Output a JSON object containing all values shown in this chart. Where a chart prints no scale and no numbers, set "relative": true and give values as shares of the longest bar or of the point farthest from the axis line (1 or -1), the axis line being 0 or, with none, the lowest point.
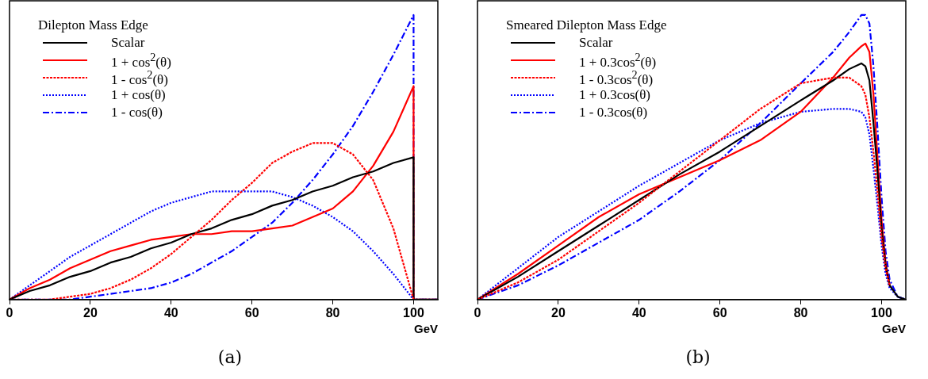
{
  "chart_data": [
    {
      "type": "line",
      "relative": true,
      "legend_title": "Dilepton Mass Edge",
      "legend": "top left",
      "xlabel": "GeV",
      "xlim": [
        0,
        106
      ],
      "xticks": [
        0,
        20,
        40,
        60,
        80,
        100
      ],
      "annotations": [
        "(a)"
      ],
      "grid": false,
      "marker": "none",
      "x": [
        0,
        5,
        10,
        15,
        20,
        25,
        30,
        35,
        40,
        45,
        50,
        55,
        60,
        65,
        70,
        75,
        80,
        85,
        90,
        95,
        100,
        100,
        106
      ],
      "series": [
        {
          "name": "Scalar",
          "color": "#000000",
          "line_style": "solid",
          "values": [
            0,
            0.03,
            0.05,
            0.08,
            0.1,
            0.13,
            0.15,
            0.18,
            0.2,
            0.23,
            0.25,
            0.28,
            0.3,
            0.33,
            0.35,
            0.38,
            0.4,
            0.43,
            0.45,
            0.48,
            0.5,
            0,
            0
          ]
        },
        {
          "name": "1 + cos$^{2}$(θ)",
          "color": "#ff0000",
          "line_style": "solid",
          "values": [
            0,
            0.04,
            0.07,
            0.11,
            0.14,
            0.17,
            0.19,
            0.21,
            0.22,
            0.23,
            0.23,
            0.24,
            0.24,
            0.25,
            0.26,
            0.29,
            0.32,
            0.38,
            0.47,
            0.59,
            0.75,
            0,
            0
          ]
        },
        {
          "name": "1 - cos$^{2}$(θ)",
          "color": "#ff0000",
          "line_style": "dashed",
          "values": [
            0,
            0,
            0,
            0.01,
            0.02,
            0.04,
            0.07,
            0.11,
            0.16,
            0.22,
            0.28,
            0.35,
            0.41,
            0.48,
            0.52,
            0.55,
            0.55,
            0.51,
            0.42,
            0.25,
            0,
            null,
            null
          ]
        },
        {
          "name": "1 + cos(θ)",
          "color": "#0000ff",
          "line_style": "dotted",
          "values": [
            0,
            0.05,
            0.1,
            0.15,
            0.19,
            0.23,
            0.27,
            0.31,
            0.34,
            0.36,
            0.38,
            0.38,
            0.38,
            0.38,
            0.36,
            0.33,
            0.29,
            0.24,
            0.17,
            0.09,
            0,
            0,
            0
          ]
        },
        {
          "name": "1 - cos(θ)",
          "color": "#0000ff",
          "line_style": "dashdot",
          "values": [
            0,
            0,
            0,
            0,
            0.01,
            0.02,
            0.03,
            0.04,
            0.06,
            0.09,
            0.13,
            0.17,
            0.22,
            0.27,
            0.34,
            0.42,
            0.51,
            0.61,
            0.73,
            0.86,
            1,
            0,
            0
          ]
        }
      ]
    },
    {
      "type": "line",
      "relative": true,
      "legend_title": "Smeared Dilepton Mass Edge",
      "legend": "top left",
      "xlabel": "GeV",
      "xlim": [
        0,
        106
      ],
      "xticks": [
        0,
        20,
        40,
        60,
        80,
        100
      ],
      "annotations": [
        "(b)"
      ],
      "grid": false,
      "marker": "none",
      "x": [
        0,
        10,
        20,
        30,
        40,
        50,
        60,
        70,
        80,
        88,
        92,
        95,
        96,
        97,
        98,
        99,
        100,
        101,
        102,
        104,
        106
      ],
      "series": [
        {
          "name": "Scalar",
          "color": "#000000",
          "line_style": "solid",
          "values": [
            0,
            0.08,
            0.17,
            0.26,
            0.35,
            0.44,
            0.52,
            0.61,
            0.7,
            0.77,
            0.81,
            0.83,
            0.82,
            0.77,
            0.62,
            0.45,
            0.25,
            0.12,
            0.05,
            0.01,
            0
          ]
        },
        {
          "name": "1 + 0.3cos$^{2}$(θ)",
          "color": "#ff0000",
          "line_style": "solid",
          "values": [
            0,
            0.09,
            0.19,
            0.29,
            0.37,
            0.43,
            0.49,
            0.56,
            0.66,
            0.78,
            0.85,
            0.89,
            0.9,
            0.87,
            0.72,
            0.5,
            0.28,
            0.13,
            0.05,
            null,
            null
          ]
        },
        {
          "name": "1 - 0.3cos$^{2}$(θ)",
          "color": "#ff0000",
          "line_style": "dashed",
          "values": [
            0,
            0.06,
            0.14,
            0.24,
            0.34,
            0.45,
            0.56,
            0.67,
            0.76,
            0.78,
            0.78,
            0.75,
            0.72,
            0.64,
            0.52,
            0.38,
            0.22,
            0.11,
            0.05,
            null,
            null
          ]
        },
        {
          "name": "1 + 0.3cos(θ)",
          "color": "#0000ff",
          "line_style": "dotted",
          "values": [
            0,
            0.11,
            0.22,
            0.31,
            0.4,
            0.48,
            0.56,
            0.62,
            0.66,
            0.67,
            0.67,
            0.66,
            0.64,
            0.58,
            0.46,
            0.33,
            0.19,
            0.09,
            0.04,
            0.01,
            0
          ]
        },
        {
          "name": "1 - 0.3cos(θ)",
          "color": "#0000ff",
          "line_style": "dashdot",
          "values": [
            0,
            0.05,
            0.12,
            0.2,
            0.28,
            0.38,
            0.49,
            0.62,
            0.76,
            0.87,
            0.94,
            1,
            1,
            0.97,
            0.82,
            0.6,
            0.36,
            0.17,
            0.07,
            0.01,
            0
          ]
        }
      ]
    }
  ]
}
